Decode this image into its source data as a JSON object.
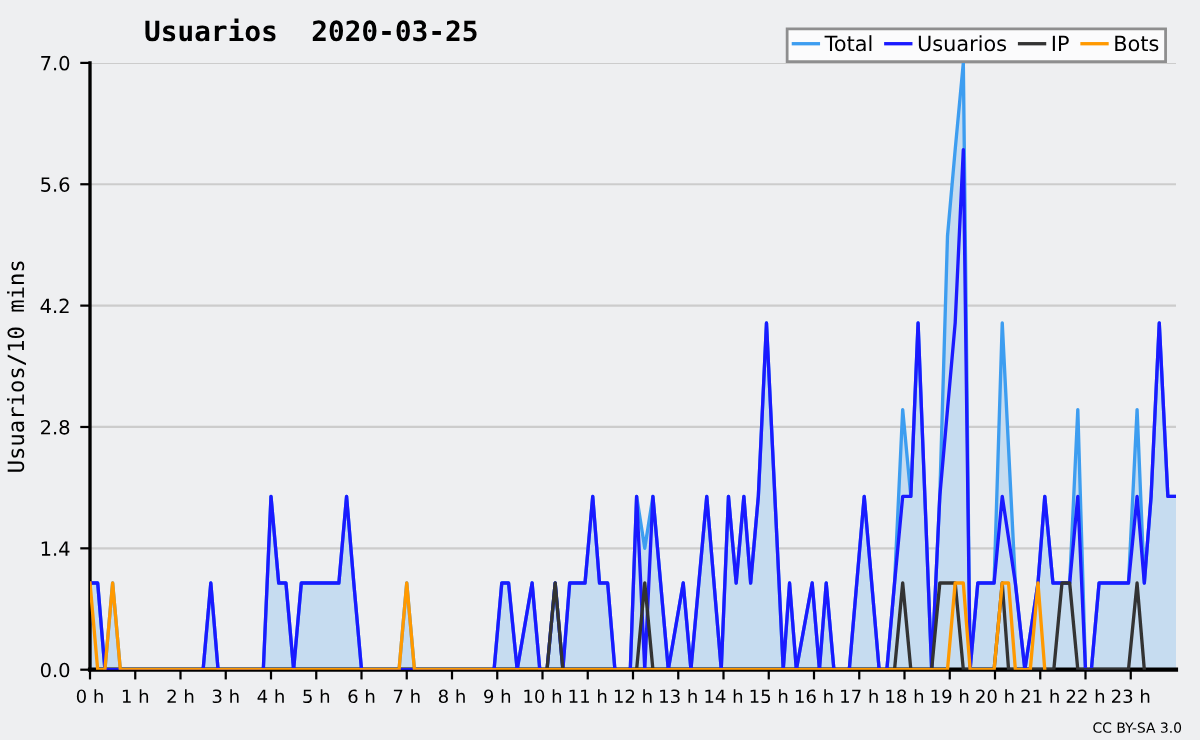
{
  "chart_data": {
    "type": "line",
    "title": "Usuarios  2020-03-25",
    "ylabel": "Usuarios/10 mins",
    "annotations": [
      "CC BY-SA 3.0"
    ],
    "xlim": [
      0,
      24
    ],
    "ylim": [
      0,
      7
    ],
    "xticks": [
      {
        "value": 0,
        "label": "0 h"
      },
      {
        "value": 1,
        "label": "1 h"
      },
      {
        "value": 2,
        "label": "2 h"
      },
      {
        "value": 3,
        "label": "3 h"
      },
      {
        "value": 4,
        "label": "4 h"
      },
      {
        "value": 5,
        "label": "5 h"
      },
      {
        "value": 6,
        "label": "6 h"
      },
      {
        "value": 7,
        "label": "7 h"
      },
      {
        "value": 8,
        "label": "8 h"
      },
      {
        "value": 9,
        "label": "9 h"
      },
      {
        "value": 10,
        "label": "10 h"
      },
      {
        "value": 11,
        "label": "11 h"
      },
      {
        "value": 12,
        "label": "12 h"
      },
      {
        "value": 13,
        "label": "13 h"
      },
      {
        "value": 14,
        "label": "14 h"
      },
      {
        "value": 15,
        "label": "15 h"
      },
      {
        "value": 16,
        "label": "16 h"
      },
      {
        "value": 17,
        "label": "17 h"
      },
      {
        "value": 18,
        "label": "18 h"
      },
      {
        "value": 19,
        "label": "19 h"
      },
      {
        "value": 20,
        "label": "20 h"
      },
      {
        "value": 21,
        "label": "21 h"
      },
      {
        "value": 22,
        "label": "22 h"
      },
      {
        "value": 23,
        "label": "23 h"
      }
    ],
    "yticks": [
      {
        "value": 0,
        "label": "0.0"
      },
      1.4,
      2.8,
      4.2,
      5.6,
      {
        "value": 7,
        "label": "7.0"
      }
    ],
    "grid": "y",
    "legend": "top right",
    "series": [
      {
        "name": "Total",
        "type": "area",
        "color": "#3d9df0",
        "x": [
          0,
          0.17,
          0.33,
          0.5,
          0.67,
          2.5,
          2.67,
          2.83,
          3.83,
          4.0,
          4.17,
          4.33,
          4.5,
          4.67,
          5.5,
          5.67,
          5.83,
          6.0,
          6.83,
          7.0,
          7.17,
          8.93,
          9.1,
          9.25,
          9.44,
          9.77,
          9.94,
          10.1,
          10.28,
          10.45,
          10.6,
          10.94,
          11.11,
          11.26,
          11.44,
          11.6,
          11.94,
          12.08,
          12.26,
          12.44,
          12.78,
          13.11,
          13.28,
          13.63,
          13.95,
          14.11,
          14.28,
          14.45,
          14.6,
          14.77,
          14.95,
          15.32,
          15.46,
          15.61,
          15.96,
          16.12,
          16.27,
          16.44,
          16.78,
          17.11,
          17.44,
          17.61,
          17.78,
          17.96,
          18.14,
          18.3,
          18.6,
          18.78,
          18.95,
          19.12,
          19.3,
          19.45,
          19.62,
          19.8,
          19.98,
          20.16,
          20.45,
          20.66,
          20.95,
          21.1,
          21.28,
          21.65,
          21.83,
          22.0,
          22.13,
          22.3,
          22.95,
          23.14,
          23.3,
          23.45,
          23.63,
          23.82,
          24
        ],
        "values": [
          1,
          1,
          0,
          1,
          0,
          0,
          1,
          0,
          0,
          2,
          1,
          1,
          0,
          1,
          1,
          2,
          1,
          0,
          0,
          1,
          0,
          0,
          1,
          1,
          0,
          1,
          0,
          0,
          1,
          0,
          1,
          1,
          2,
          1,
          1,
          0,
          0,
          2,
          1.4,
          2,
          0,
          1,
          0,
          2,
          0,
          2,
          1,
          2,
          1,
          2,
          4,
          0,
          1,
          0,
          1,
          0,
          1,
          0,
          0,
          2,
          0,
          0,
          1,
          3,
          2,
          4,
          0,
          2,
          5,
          6,
          7,
          0,
          1,
          1,
          1,
          4,
          1,
          0,
          1,
          2,
          1,
          1,
          3,
          0,
          0,
          1,
          1,
          3,
          1,
          2,
          4,
          2,
          2
        ]
      },
      {
        "name": "Usuarios",
        "color": "#1a1aff",
        "x": [
          0,
          0.17,
          0.33,
          2.5,
          2.67,
          2.83,
          3.83,
          4.0,
          4.17,
          4.33,
          4.5,
          4.67,
          5.5,
          5.67,
          5.83,
          6.0,
          8.93,
          9.1,
          9.25,
          9.44,
          9.77,
          9.94,
          10.1,
          10.28,
          10.45,
          10.6,
          10.94,
          11.11,
          11.26,
          11.44,
          11.6,
          11.94,
          12.08,
          12.26,
          12.44,
          12.78,
          13.11,
          13.28,
          13.63,
          13.95,
          14.11,
          14.28,
          14.45,
          14.6,
          14.77,
          14.95,
          15.32,
          15.46,
          15.61,
          15.96,
          16.12,
          16.27,
          16.44,
          16.78,
          17.11,
          17.44,
          17.61,
          17.78,
          17.96,
          18.14,
          18.3,
          18.6,
          18.78,
          18.95,
          19.12,
          19.3,
          19.45,
          19.62,
          19.8,
          19.98,
          20.16,
          20.45,
          20.66,
          20.95,
          21.1,
          21.28,
          21.65,
          21.83,
          22.0,
          22.13,
          22.3,
          22.95,
          23.14,
          23.3,
          23.45,
          23.63,
          23.82,
          24
        ],
        "values": [
          1,
          1,
          0,
          0,
          1,
          0,
          0,
          2,
          1,
          1,
          0,
          1,
          1,
          2,
          1,
          0,
          0,
          1,
          1,
          0,
          1,
          0,
          0,
          1,
          0,
          1,
          1,
          2,
          1,
          1,
          0,
          0,
          2,
          0,
          2,
          0,
          1,
          0,
          2,
          0,
          2,
          1,
          2,
          1,
          2,
          4,
          0,
          1,
          0,
          1,
          0,
          1,
          0,
          0,
          2,
          0,
          0,
          1,
          2,
          2,
          4,
          0,
          2,
          3,
          4,
          6,
          0,
          1,
          1,
          1,
          2,
          1,
          0,
          1,
          2,
          1,
          1,
          2,
          0,
          0,
          1,
          1,
          2,
          1,
          2,
          4,
          2,
          2
        ]
      },
      {
        "name": "IP",
        "color": "#333333",
        "x": [
          10.1,
          10.28,
          10.45,
          12.08,
          12.26,
          12.44,
          17.78,
          17.96,
          18.14,
          18.6,
          18.78,
          19.12,
          19.3,
          19.98,
          20.16,
          20.3,
          21.3,
          21.48,
          21.65,
          21.83,
          22.95,
          23.14,
          23.3
        ],
        "values": [
          0,
          1,
          0,
          0,
          1,
          0,
          0,
          1,
          0,
          0,
          1,
          1,
          0,
          0,
          1,
          0,
          0,
          1,
          1,
          0,
          0,
          1,
          0
        ]
      },
      {
        "name": "Bots",
        "color": "#ff9900",
        "x": [
          0,
          0.17,
          0.33,
          0.5,
          0.67,
          6.83,
          7.0,
          7.17,
          18.95,
          19.12,
          19.3,
          19.45,
          19.98,
          20.16,
          20.3,
          20.45,
          20.78,
          20.95,
          21.1
        ],
        "values": [
          1,
          0,
          0,
          1,
          0,
          0,
          1,
          0,
          0,
          1,
          1,
          0,
          0,
          1,
          1,
          0,
          0,
          1,
          0
        ]
      }
    ]
  }
}
